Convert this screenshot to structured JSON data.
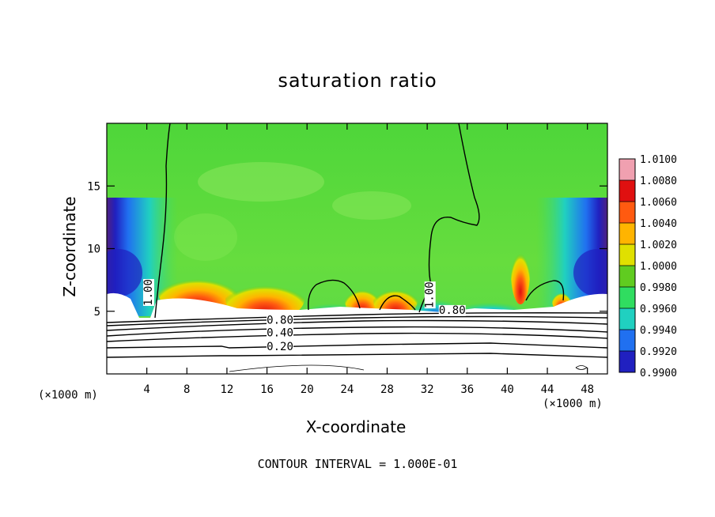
{
  "chart_data": {
    "type": "heatmap",
    "title": "saturation ratio",
    "xlabel": "X-coordinate",
    "ylabel": "Z-coordinate",
    "x_unit_label": "(×1000 m)",
    "footer": "CONTOUR INTERVAL = 1.000E-01",
    "xlim": [
      0,
      50
    ],
    "ylim": [
      0,
      20
    ],
    "x_ticks": [
      4,
      8,
      12,
      16,
      20,
      24,
      28,
      32,
      36,
      40,
      44,
      48
    ],
    "y_ticks": [
      5,
      10,
      15
    ],
    "colorbar": {
      "labels": [
        "1.0100",
        "1.0080",
        "1.0060",
        "1.0040",
        "1.0020",
        "1.0000",
        "0.9980",
        "0.9960",
        "0.9940",
        "0.9920",
        "0.9900"
      ],
      "colors": [
        "#f0a0b0",
        "#e01010",
        "#ff5a10",
        "#ffb400",
        "#e0e000",
        "#60cc20",
        "#30dd60",
        "#20d0c0",
        "#2070f0",
        "#2020c0",
        "#502080"
      ]
    },
    "contour_labels": [
      {
        "text": "1.00",
        "x": 4.5,
        "z": 6.5
      },
      {
        "text": "1.00",
        "x": 32.6,
        "z": 6.3
      },
      {
        "text": "0.80",
        "x": 17.3,
        "z": 4.0
      },
      {
        "text": "0.80",
        "x": 34.5,
        "z": 4.8
      },
      {
        "text": "0.40",
        "x": 17.3,
        "z": 3.0
      },
      {
        "text": "0.20",
        "x": 17.3,
        "z": 1.9
      }
    ]
  }
}
